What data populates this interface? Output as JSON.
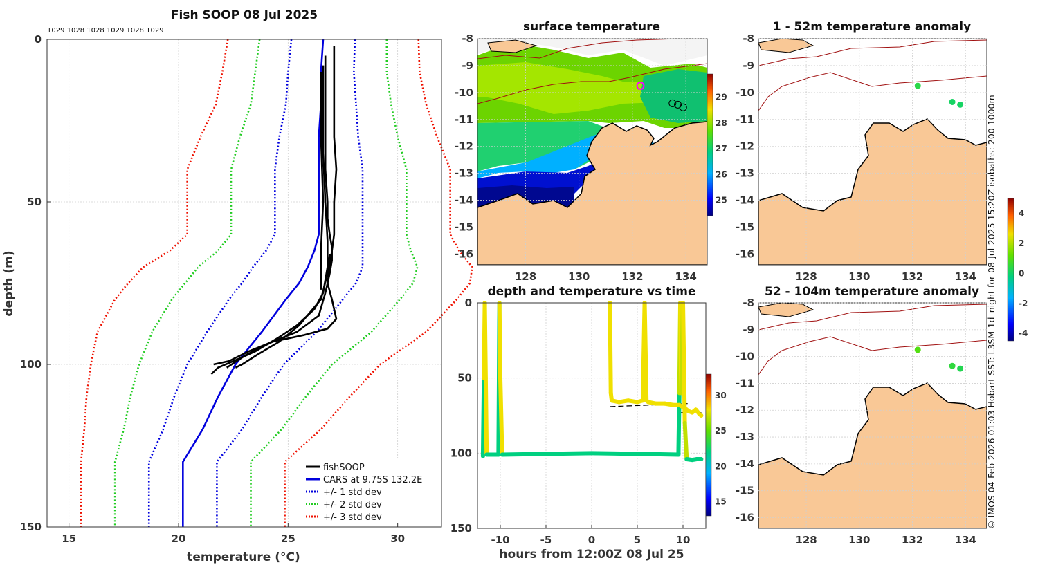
{
  "figure": {
    "credit": "© IMOS 04-Feb-2026 01:03 Hobart SST: L3SM-1d_night for 08-Jul-2025 15:20Z isobaths: 200  1000m",
    "colors": {
      "land": "#f9c896",
      "isobath": "#a01010",
      "fish": "#000000",
      "cars": "#0000dd",
      "std1": "#0000dd",
      "std2": "#22cc22",
      "std3": "#ee1100"
    }
  },
  "chart_data": [
    {
      "id": "profile",
      "type": "line",
      "title": "Fish SOOP 08 Jul 2025",
      "top_labels": "1029 1028 1028 1029 1028 1029",
      "xlabel": "temperature (°C)",
      "ylabel": "depth (m)",
      "xlim": [
        14,
        32
      ],
      "ylim": [
        0,
        150
      ],
      "xticks": [
        15,
        20,
        25,
        30
      ],
      "yticks": [
        0,
        50,
        100,
        150
      ],
      "depth": [
        0,
        10,
        20,
        30,
        40,
        50,
        60,
        65,
        70,
        75,
        80,
        90,
        100,
        110,
        120,
        130,
        150
      ],
      "cars": [
        26.6,
        26.5,
        26.5,
        26.4,
        26.4,
        26.4,
        26.4,
        26.2,
        25.9,
        25.5,
        24.9,
        23.8,
        22.6,
        21.8,
        21.1,
        20.2,
        20.2
      ],
      "std": [
        1.45,
        1.5,
        1.6,
        1.8,
        2.0,
        2.0,
        2.0,
        2.2,
        2.5,
        2.6,
        2.6,
        2.5,
        2.2,
        2.0,
        1.8,
        1.55,
        1.55
      ],
      "fish": [
        {
          "t": [
            27.1,
            27.1,
            27.1,
            27.1,
            27.2,
            27.1,
            27.1,
            27.0,
            26.9,
            26.8,
            27.0,
            27.2,
            26.8,
            25.7,
            24.3,
            23.2,
            22.3,
            21.6
          ],
          "d": [
            2,
            10,
            20,
            30,
            40,
            50,
            60,
            65,
            70,
            75,
            80,
            86,
            89,
            91,
            93,
            96,
            99,
            100
          ]
        },
        {
          "t": [
            26.7,
            26.7,
            26.7,
            26.8,
            26.8,
            26.9,
            27.0,
            27.0,
            26.9,
            26.7,
            26.4,
            25.4,
            24.3,
            23.1,
            22.2
          ],
          "d": [
            5,
            20,
            40,
            50,
            55,
            60,
            64,
            68,
            72,
            78,
            85,
            90,
            93,
            97,
            101
          ]
        },
        {
          "t": [
            26.6,
            26.6,
            26.6,
            26.7,
            26.8,
            26.8,
            26.6,
            26.2,
            25.4,
            24.5,
            23.5,
            22.5,
            21.8,
            21.5
          ],
          "d": [
            8,
            20,
            35,
            50,
            62,
            70,
            78,
            83,
            88,
            92,
            96,
            99,
            101,
            103
          ]
        },
        {
          "t": [
            26.5,
            26.5,
            26.6,
            26.5,
            26.5
          ],
          "d": [
            10,
            30,
            50,
            65,
            77
          ]
        },
        {
          "t": [
            26.9,
            26.8,
            26.5,
            25.5,
            24.6,
            23.6,
            22.9,
            22.6
          ],
          "d": [
            66,
            72,
            80,
            88,
            93,
            97,
            100,
            101
          ]
        }
      ],
      "legend": [
        "fishSOOP",
        "CARS at 9.75S 132.2E",
        "+/- 1 std dev",
        "+/- 2 std dev",
        "+/- 3 std dev"
      ]
    },
    {
      "id": "sst",
      "type": "heatmap",
      "title": "surface temperature",
      "xticks": [
        128,
        130,
        132,
        134
      ],
      "yticks": [
        -8,
        -9,
        -10,
        -11,
        -12,
        -13,
        -14,
        -15,
        -16
      ],
      "xlim": [
        126.2,
        134.8
      ],
      "ylim": [
        -16.4,
        -8
      ],
      "colorbar_ticks": [
        25,
        26,
        27,
        28,
        29
      ],
      "colorbar_range": [
        24.4,
        29.9
      ],
      "stations": [
        [
          132.3,
          -9.75
        ],
        [
          133.5,
          -10.4
        ],
        [
          133.7,
          -10.45
        ],
        [
          133.9,
          -10.55
        ]
      ]
    },
    {
      "id": "timeseries",
      "type": "line",
      "title": "depth and temperature vs time",
      "xlabel": "hours from 12:00Z 08 Jul 25",
      "xticks": [
        -10,
        -5,
        0,
        5,
        10
      ],
      "yticks": [
        0,
        50,
        100,
        150
      ],
      "xlim": [
        -12.5,
        12.5
      ],
      "ylim": [
        0,
        150
      ],
      "colorbar_ticks": [
        15,
        20,
        25,
        30
      ],
      "colorbar_range": [
        13,
        33
      ],
      "bottom_depth": [
        {
          "t": -11.5,
          "d": 101
        },
        {
          "t": 9.7,
          "d": 101
        },
        {
          "t": 9.8,
          "d": 73
        },
        {
          "t": 12,
          "d": 73
        }
      ],
      "segments": [
        {
          "t": [
            -11.9,
            -11.8,
            -11.7,
            -11.6,
            -11.5
          ],
          "d": [
            102,
            50,
            0,
            50,
            101
          ],
          "temp": [
            22,
            28,
            28,
            28,
            22
          ]
        },
        {
          "t": [
            -11.5,
            -10.2,
            -10.1,
            -10.0,
            -9.8,
            -5,
            0,
            5,
            9.5,
            9.6,
            9.7,
            9.8,
            10.0,
            10.2,
            10.4
          ],
          "d": [
            101,
            101,
            0,
            50,
            101,
            100.5,
            100,
            100.5,
            101,
            60,
            0,
            60,
            0,
            80,
            104
          ],
          "temp": [
            22,
            22,
            28,
            28,
            22,
            22,
            22,
            22,
            22,
            27,
            28,
            27,
            28,
            27,
            22
          ]
        },
        {
          "t": [
            2.0,
            2.1,
            2.2,
            3,
            4,
            5,
            5.6,
            5.8,
            6.0,
            6.2,
            7,
            8,
            9,
            9.6,
            10.2,
            10.6,
            11,
            11.4,
            11.8,
            12.0
          ],
          "d": [
            0,
            60,
            65,
            66,
            65,
            66,
            65,
            0,
            65,
            66,
            67,
            67,
            68,
            68,
            70,
            72,
            73,
            71,
            74,
            75
          ],
          "temp": [
            28,
            28,
            28,
            28,
            28,
            28,
            28,
            28,
            28,
            28,
            28,
            28,
            28,
            28,
            28,
            28,
            28,
            28,
            28,
            28
          ]
        },
        {
          "t": [
            10.4,
            11,
            11.5,
            12.0
          ],
          "d": [
            104,
            104.5,
            104,
            104
          ],
          "temp": [
            22,
            22,
            22,
            22
          ]
        }
      ]
    },
    {
      "id": "anom1",
      "type": "scatter",
      "title": "1 - 52m temperature anomaly",
      "xticks": [
        128,
        130,
        132,
        134
      ],
      "yticks": [
        -8,
        -9,
        -10,
        -11,
        -12,
        -13,
        -14,
        -15,
        -16
      ],
      "points": [
        {
          "lon": 132.2,
          "lat": -9.75,
          "anom": 0.4
        },
        {
          "lon": 133.5,
          "lat": -10.35,
          "anom": 0.1
        },
        {
          "lon": 133.8,
          "lat": -10.45,
          "anom": 0.1
        }
      ]
    },
    {
      "id": "anom2",
      "type": "scatter",
      "title": "52 - 104m temperature anomaly",
      "xticks": [
        128,
        130,
        132,
        134
      ],
      "yticks": [
        -8,
        -9,
        -10,
        -11,
        -12,
        -13,
        -14,
        -15,
        -16
      ],
      "points": [
        {
          "lon": 132.2,
          "lat": -9.75,
          "anom": 1.0
        },
        {
          "lon": 133.5,
          "lat": -10.35,
          "anom": 0.5
        },
        {
          "lon": 133.8,
          "lat": -10.45,
          "anom": 0.3
        }
      ],
      "colorbar_ticks": [
        4,
        2,
        0,
        -2,
        -4
      ],
      "colorbar_range": [
        -4.5,
        5
      ]
    }
  ]
}
